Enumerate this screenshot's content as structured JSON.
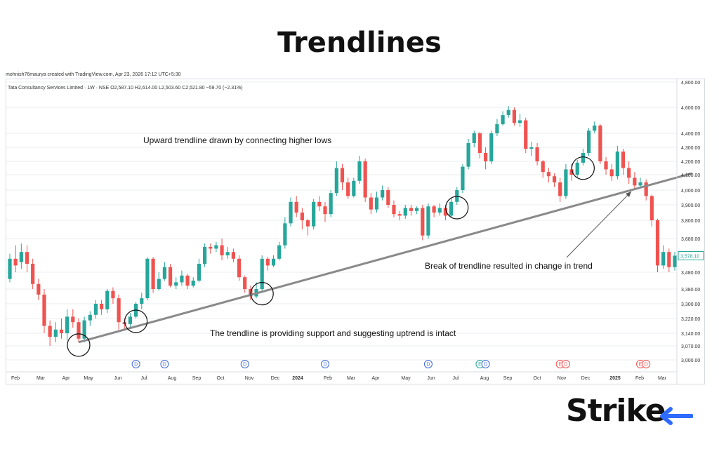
{
  "title": "Trendlines",
  "meta": "mohnish76maurya created with TradingView.com, Apr 23, 2026 17:12 UTC+5:30",
  "logo": "Strike",
  "chart_data": {
    "type": "candlestick",
    "header": "Tata Consultancy Services Limited · 1W · NSE  O2,587.10  H2,614.00  L2,503.60  C2,521.80  −59.70 (−2.31%)",
    "price_tick_labels": [
      "4,800.00",
      "4,600.00",
      "4,400.00",
      "4,300.00",
      "4,200.00",
      "4,100.00",
      "4,000.00",
      "3,900.00",
      "3,800.00",
      "3,680.00",
      "3,578.10",
      "3,480.00",
      "3,380.00",
      "3,300.00",
      "3,220.00",
      "3,140.00",
      "3,070.00",
      "3,000.00"
    ],
    "time_tick_labels": [
      "Feb",
      "Mar",
      "Apr",
      "May",
      "Jun",
      "Jul",
      "Aug",
      "Sep",
      "Oct",
      "Nov",
      "Dec",
      "2024",
      "Feb",
      "Mar",
      "Apr",
      "May",
      "Jun",
      "Jul",
      "Aug",
      "Sep",
      "Oct",
      "Nov",
      "Dec",
      "2025",
      "Feb",
      "Mar"
    ],
    "last_price": "3,578.10",
    "candles": [
      [
        3440,
        3560,
        3420,
        3590
      ],
      [
        3560,
        3520,
        3480,
        3640
      ],
      [
        3540,
        3600,
        3500,
        3650
      ],
      [
        3600,
        3530,
        3480,
        3640
      ],
      [
        3530,
        3410,
        3380,
        3560
      ],
      [
        3410,
        3350,
        3320,
        3440
      ],
      [
        3350,
        3180,
        3140,
        3380
      ],
      [
        3180,
        3120,
        3070,
        3210
      ],
      [
        3120,
        3160,
        3090,
        3200
      ],
      [
        3160,
        3140,
        3110,
        3220
      ],
      [
        3140,
        3230,
        3100,
        3270
      ],
      [
        3230,
        3200,
        3170,
        3270
      ],
      [
        3200,
        3110,
        3090,
        3220
      ],
      [
        3110,
        3210,
        3090,
        3230
      ],
      [
        3210,
        3240,
        3180,
        3260
      ],
      [
        3240,
        3300,
        3220,
        3320
      ],
      [
        3300,
        3270,
        3240,
        3320
      ],
      [
        3270,
        3370,
        3250,
        3380
      ],
      [
        3370,
        3330,
        3300,
        3390
      ],
      [
        3330,
        3200,
        3160,
        3350
      ],
      [
        3200,
        3190,
        3160,
        3220
      ],
      [
        3190,
        3230,
        3170,
        3250
      ],
      [
        3230,
        3300,
        3220,
        3310
      ],
      [
        3300,
        3330,
        3270,
        3360
      ],
      [
        3330,
        3560,
        3320,
        3570
      ],
      [
        3560,
        3380,
        3360,
        3570
      ],
      [
        3380,
        3440,
        3370,
        3480
      ],
      [
        3440,
        3510,
        3430,
        3540
      ],
      [
        3510,
        3400,
        3390,
        3530
      ],
      [
        3400,
        3420,
        3380,
        3450
      ],
      [
        3420,
        3460,
        3400,
        3490
      ],
      [
        3460,
        3400,
        3380,
        3470
      ],
      [
        3400,
        3430,
        3390,
        3450
      ],
      [
        3430,
        3530,
        3420,
        3560
      ],
      [
        3530,
        3630,
        3510,
        3650
      ],
      [
        3630,
        3620,
        3590,
        3650
      ],
      [
        3620,
        3640,
        3600,
        3660
      ],
      [
        3640,
        3580,
        3550,
        3680
      ],
      [
        3580,
        3600,
        3560,
        3630
      ],
      [
        3600,
        3560,
        3540,
        3620
      ],
      [
        3560,
        3450,
        3430,
        3580
      ],
      [
        3450,
        3380,
        3360,
        3460
      ],
      [
        3380,
        3340,
        3320,
        3400
      ],
      [
        3340,
        3380,
        3330,
        3420
      ],
      [
        3380,
        3560,
        3370,
        3580
      ],
      [
        3560,
        3520,
        3490,
        3570
      ],
      [
        3520,
        3560,
        3510,
        3580
      ],
      [
        3560,
        3640,
        3550,
        3660
      ],
      [
        3640,
        3780,
        3620,
        3820
      ],
      [
        3780,
        3920,
        3760,
        3950
      ],
      [
        3920,
        3850,
        3820,
        3960
      ],
      [
        3850,
        3800,
        3740,
        3880
      ],
      [
        3800,
        3760,
        3700,
        3810
      ],
      [
        3760,
        3920,
        3740,
        3940
      ],
      [
        3920,
        3890,
        3860,
        3960
      ],
      [
        3890,
        3840,
        3790,
        3920
      ],
      [
        3840,
        3980,
        3820,
        4000
      ],
      [
        3980,
        4150,
        3960,
        4200
      ],
      [
        4150,
        4050,
        4000,
        4180
      ],
      [
        4050,
        3960,
        3940,
        4080
      ],
      [
        3960,
        4060,
        3950,
        4080
      ],
      [
        4060,
        4200,
        4040,
        4240
      ],
      [
        4200,
        3950,
        3920,
        4220
      ],
      [
        3950,
        3870,
        3840,
        3980
      ],
      [
        3870,
        3950,
        3850,
        3990
      ],
      [
        3950,
        4000,
        3930,
        4030
      ],
      [
        4000,
        3900,
        3880,
        4020
      ],
      [
        3900,
        3840,
        3820,
        3930
      ],
      [
        3840,
        3830,
        3800,
        3860
      ],
      [
        3830,
        3880,
        3810,
        3900
      ],
      [
        3880,
        3860,
        3830,
        3900
      ],
      [
        3860,
        3880,
        3840,
        3890
      ],
      [
        3880,
        3700,
        3670,
        3900
      ],
      [
        3700,
        3890,
        3680,
        3910
      ],
      [
        3890,
        3850,
        3820,
        3900
      ],
      [
        3850,
        3880,
        3830,
        3910
      ],
      [
        3880,
        3830,
        3800,
        3900
      ],
      [
        3830,
        3920,
        3820,
        3950
      ],
      [
        3920,
        4000,
        3900,
        4020
      ],
      [
        4000,
        4160,
        3980,
        4180
      ],
      [
        4160,
        4330,
        4140,
        4360
      ],
      [
        4330,
        4400,
        4300,
        4420
      ],
      [
        4400,
        4260,
        4220,
        4410
      ],
      [
        4260,
        4200,
        4140,
        4300
      ],
      [
        4200,
        4400,
        4180,
        4420
      ],
      [
        4400,
        4470,
        4380,
        4510
      ],
      [
        4470,
        4540,
        4460,
        4570
      ],
      [
        4540,
        4580,
        4520,
        4610
      ],
      [
        4580,
        4480,
        4460,
        4600
      ],
      [
        4480,
        4500,
        4450,
        4550
      ],
      [
        4500,
        4290,
        4260,
        4520
      ],
      [
        4290,
        4300,
        4240,
        4340
      ],
      [
        4300,
        4200,
        4170,
        4330
      ],
      [
        4200,
        4120,
        4080,
        4210
      ],
      [
        4120,
        4090,
        4050,
        4150
      ],
      [
        4090,
        4050,
        4020,
        4110
      ],
      [
        4050,
        3960,
        3920,
        4080
      ],
      [
        3960,
        4140,
        3940,
        4180
      ],
      [
        4140,
        4100,
        4060,
        4180
      ],
      [
        4100,
        4190,
        4080,
        4210
      ],
      [
        4190,
        4260,
        4170,
        4290
      ],
      [
        4260,
        4420,
        4240,
        4440
      ],
      [
        4420,
        4460,
        4400,
        4490
      ],
      [
        4460,
        4200,
        4180,
        4470
      ],
      [
        4200,
        4140,
        4100,
        4230
      ],
      [
        4140,
        4090,
        4060,
        4180
      ],
      [
        4090,
        4270,
        4070,
        4310
      ],
      [
        4270,
        4150,
        4100,
        4290
      ],
      [
        4150,
        4080,
        4040,
        4200
      ],
      [
        4080,
        4030,
        4000,
        4120
      ],
      [
        4030,
        4050,
        4010,
        4080
      ],
      [
        4050,
        3960,
        3930,
        4070
      ],
      [
        3960,
        3800,
        3760,
        3970
      ],
      [
        3800,
        3520,
        3480,
        3810
      ],
      [
        3520,
        3600,
        3500,
        3640
      ],
      [
        3600,
        3510,
        3480,
        3620
      ],
      [
        3510,
        3578,
        3490,
        3600
      ]
    ],
    "trendline": {
      "from": {
        "index": 12,
        "price": 3090
      },
      "to": {
        "index": 119,
        "price": 4110
      }
    },
    "circled_candles": [
      12,
      22,
      44,
      78,
      100
    ],
    "event_markers": [
      {
        "index": 22,
        "label": "D",
        "color": "#3f6ad8"
      },
      {
        "index": 27,
        "label": "D",
        "color": "#3f6ad8"
      },
      {
        "index": 41,
        "label": "D",
        "color": "#3f6ad8"
      },
      {
        "index": 55,
        "label": "D",
        "color": "#3f6ad8"
      },
      {
        "index": 73,
        "label": "D",
        "color": "#3f6ad8"
      },
      {
        "index": 82,
        "label": "E",
        "color": "#26a69a"
      },
      {
        "index": 83,
        "label": "D",
        "color": "#3f6ad8"
      },
      {
        "index": 96,
        "label": "E",
        "color": "#ef5350"
      },
      {
        "index": 97,
        "label": "D",
        "color": "#ef5350"
      },
      {
        "index": 110,
        "label": "E",
        "color": "#ef5350"
      },
      {
        "index": 111,
        "label": "D",
        "color": "#ef5350"
      }
    ],
    "annotations": [
      "Upward trendline drawn by connecting higher lows",
      "The trendline is providing support and suggesting uptrend is intact",
      "Break of trendline resulted in change in trend"
    ],
    "colors": {
      "up": "#26a69a",
      "down": "#ef5350",
      "trendline": "#8a8a8a",
      "grid": "#e9ecf1",
      "last_price": "#26a69a"
    }
  }
}
